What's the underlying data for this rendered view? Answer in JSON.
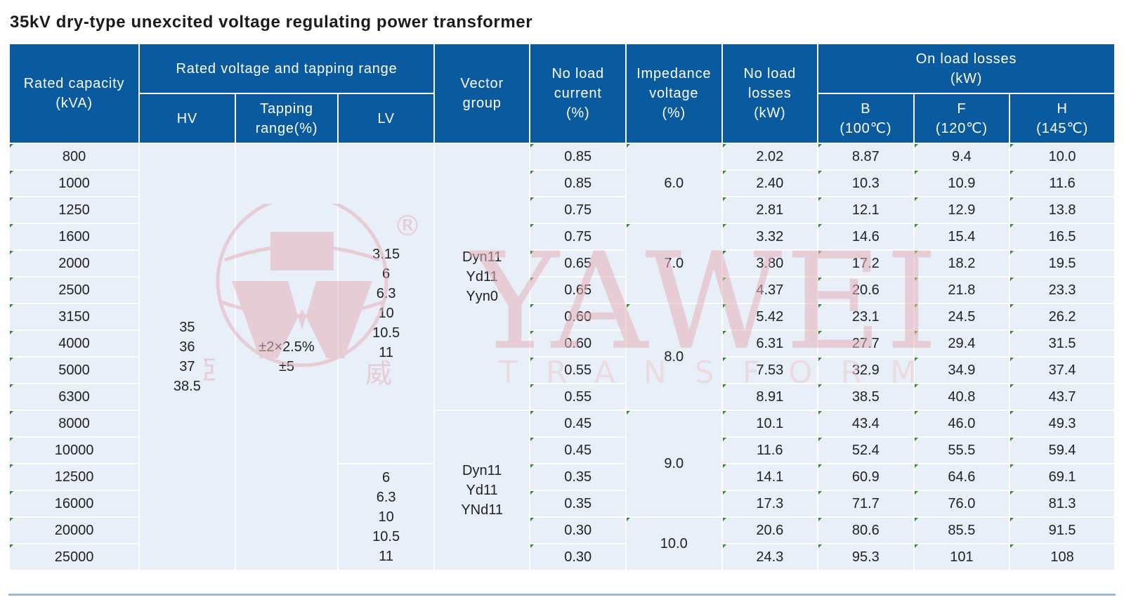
{
  "title": "35kV dry-type unexcited voltage regulating power transformer",
  "watermark": {
    "brand": "YAWEI",
    "sub": "TRANSFORMER",
    "logo_chars": [
      "亞",
      "威"
    ],
    "registered": "®"
  },
  "header": {
    "rated_capacity": "Rated capacity\n(kVA)",
    "rated_voltage": "Rated voltage and tapping range",
    "hv": "HV",
    "tapping": "Tapping\nrange(%)",
    "lv": "LV",
    "vector": "Vector\ngroup",
    "no_load_current": "No load\ncurrent\n(%)",
    "impedance": "Impedance\nvoltage\n(%)",
    "no_load_losses": "No load\nlosses\n(kW)",
    "on_load_losses": "On load losses\n(kW)",
    "b": "B\n(100℃)",
    "f": "F\n(120℃)",
    "h": "H\n(145℃)"
  },
  "merged": {
    "hv": "35\n36\n37\n38.5",
    "tapping": "±2×2.5%\n±5",
    "lv_1": "3.15\n6\n6.3\n10\n10.5\n11",
    "lv_2": "6\n6.3\n10\n10.5\n11",
    "vector_1": "Dyn11\nYd11\nYyn0",
    "vector_2": "Dyn11\nYd11\nYNd11",
    "imp_1": "6.0",
    "imp_2": "7.0",
    "imp_3": "8.0",
    "imp_4": "9.0",
    "imp_5": "10.0"
  },
  "rows": [
    {
      "cap": "800",
      "nlc": "0.85",
      "nll": "2.02",
      "b": "8.87",
      "f": "9.4",
      "h": "10.0"
    },
    {
      "cap": "1000",
      "nlc": "0.85",
      "nll": "2.40",
      "b": "10.3",
      "f": "10.9",
      "h": "11.6"
    },
    {
      "cap": "1250",
      "nlc": "0.75",
      "nll": "2.81",
      "b": "12.1",
      "f": "12.9",
      "h": "13.8"
    },
    {
      "cap": "1600",
      "nlc": "0.75",
      "nll": "3.32",
      "b": "14.6",
      "f": "15.4",
      "h": "16.5"
    },
    {
      "cap": "2000",
      "nlc": "0.65",
      "nll": "3.80",
      "b": "17.2",
      "f": "18.2",
      "h": "19.5"
    },
    {
      "cap": "2500",
      "nlc": "0.65",
      "nll": "4.37",
      "b": "20.6",
      "f": "21.8",
      "h": "23.3"
    },
    {
      "cap": "3150",
      "nlc": "0.60",
      "nll": "5.42",
      "b": "23.1",
      "f": "24.5",
      "h": "26.2"
    },
    {
      "cap": "4000",
      "nlc": "0.60",
      "nll": "6.31",
      "b": "27.7",
      "f": "29.4",
      "h": "31.5"
    },
    {
      "cap": "5000",
      "nlc": "0.55",
      "nll": "7.53",
      "b": "32.9",
      "f": "34.9",
      "h": "37.4"
    },
    {
      "cap": "6300",
      "nlc": "0.55",
      "nll": "8.91",
      "b": "38.5",
      "f": "40.8",
      "h": "43.7"
    },
    {
      "cap": "8000",
      "nlc": "0.45",
      "nll": "10.1",
      "b": "43.4",
      "f": "46.0",
      "h": "49.3"
    },
    {
      "cap": "10000",
      "nlc": "0.45",
      "nll": "11.6",
      "b": "52.4",
      "f": "55.5",
      "h": "59.4"
    },
    {
      "cap": "12500",
      "nlc": "0.35",
      "nll": "14.1",
      "b": "60.9",
      "f": "64.6",
      "h": "69.1"
    },
    {
      "cap": "16000",
      "nlc": "0.35",
      "nll": "17.3",
      "b": "71.7",
      "f": "76.0",
      "h": "81.3"
    },
    {
      "cap": "20000",
      "nlc": "0.30",
      "nll": "20.6",
      "b": "80.6",
      "f": "85.5",
      "h": "91.5"
    },
    {
      "cap": "25000",
      "nlc": "0.30",
      "nll": "24.3",
      "b": "95.3",
      "f": "101",
      "h": "108"
    }
  ],
  "colors": {
    "header_bg": "#0a5aa0",
    "cell_bg": "#e9eff9",
    "watermark": "#d9a0a6"
  }
}
